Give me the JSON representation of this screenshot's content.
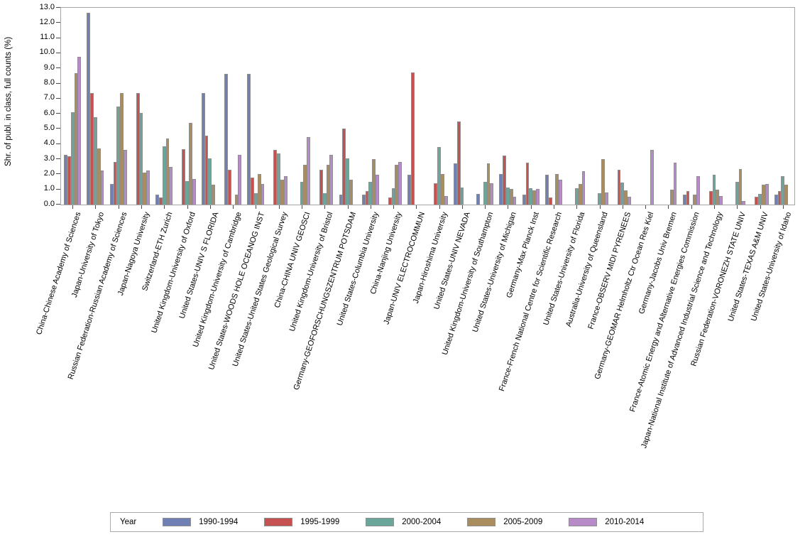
{
  "y_axis": {
    "title": "Shr. of publ. in class, full counts (%)",
    "tick_labels": [
      "0.0",
      "1.0",
      "2.0",
      "3.0",
      "4.0",
      "5.0",
      "6.0",
      "7.0",
      "8.0",
      "9.0",
      "10.0",
      "11.0",
      "12.0",
      "13.0"
    ],
    "min": 0,
    "max": 13,
    "step": 1
  },
  "legend": {
    "title": "Year",
    "position": "bottom"
  },
  "colors": {
    "frame": "#a6a6a6",
    "bar_outline": "#8e8e8e",
    "tick": "#4a4a4a",
    "background": "#ffffff"
  },
  "chart_data": {
    "type": "bar",
    "title": "",
    "xlabel": "",
    "ylabel": "Shr. of publ. in class, full counts (%)",
    "ylim": [
      0,
      13
    ],
    "grid": false,
    "legend_position": "bottom",
    "categories": [
      "China-Chinese Academy of Sciences",
      "Japan-University of Tokyo",
      "Russian Federation-Russian Academy of Sciences",
      "Japan-Nagoya University",
      "Switzerland-ETH Zurich",
      "United Kingdom-University of Oxford",
      "United States-UNIV S FLORIDA",
      "United Kingdom-University of Cambridge",
      "United States-WOODS HOLE OCEANOG INST",
      "United States-United States Geological Survey",
      "China-CHINA UNIV GEOSCI",
      "United Kingdom-University of Bristol",
      "Germany-GEOFORSCHUNGSZENTRUM POTSDAM",
      "United States-Columbia University",
      "China-Nanjing University",
      "Japan-UNIV ELECTROCOMMUN",
      "Japan-Hiroshima University",
      "United States-UNIV NEVADA",
      "United Kingdom-University of Southampton",
      "United States-University of Michigan",
      "Germany-Max Planck Inst",
      "France-French National Centre for Scientific Research",
      "United States-University of Florida",
      "Australia-University of Queensland",
      "France-OBSERV MIDI PYRENEES",
      "Germany-GEOMAR Helmholtz Ctr Ocean Res Kiel",
      "Germany-Jacobs Univ Bremen",
      "France-Atomic Energy and Alternative Energies Commission",
      "Japan-National Institute of Advanced Industrial Science and Technology",
      "Russian Federation-VORONEZH STATE UNIV",
      "United States-TEXAS A&M UNIV",
      "United States-University of Idaho"
    ],
    "series": [
      {
        "name": "1990-1994",
        "color": "#7180b4",
        "values": [
          3.3,
          12.65,
          1.35,
          0,
          0.65,
          0,
          7.35,
          8.65,
          8.65,
          0,
          0,
          0,
          0.65,
          0.65,
          0,
          1.95,
          0,
          2.7,
          0.7,
          2.0,
          0.65,
          1.95,
          0,
          0,
          0,
          0,
          0,
          0.65,
          0,
          0,
          0,
          0.65
        ]
      },
      {
        "name": "1995-1999",
        "color": "#c55251",
        "values": [
          3.2,
          7.35,
          2.8,
          7.35,
          0.45,
          3.65,
          4.55,
          2.3,
          1.8,
          3.6,
          0,
          2.3,
          5.0,
          0.9,
          0.45,
          8.75,
          1.4,
          5.5,
          0,
          3.25,
          2.75,
          0.45,
          0,
          0,
          2.3,
          0,
          0,
          0.9,
          0.9,
          0,
          0.5,
          0.9
        ]
      },
      {
        "name": "2000-2004",
        "color": "#6aa69a",
        "values": [
          6.1,
          5.75,
          6.5,
          6.05,
          3.85,
          1.55,
          3.05,
          0,
          0.75,
          3.4,
          1.5,
          0.75,
          3.05,
          1.5,
          1.1,
          0,
          3.8,
          1.15,
          1.5,
          1.15,
          1.1,
          0,
          1.1,
          0.75,
          1.45,
          0,
          0,
          0,
          1.95,
          1.5,
          0.7,
          1.9
        ]
      },
      {
        "name": "2005-2009",
        "color": "#a98d5e",
        "values": [
          8.7,
          3.7,
          7.35,
          2.1,
          4.35,
          5.4,
          1.3,
          0.65,
          2.0,
          1.65,
          2.65,
          2.65,
          1.65,
          3.0,
          2.65,
          0,
          2.0,
          0,
          2.7,
          1.05,
          0.95,
          2.0,
          1.35,
          3.0,
          0.95,
          0,
          1.0,
          0.65,
          1.0,
          2.35,
          1.3,
          1.3
        ]
      },
      {
        "name": "2010-2014",
        "color": "#b78bc7",
        "values": [
          9.75,
          2.25,
          3.6,
          2.25,
          2.5,
          1.7,
          0,
          3.3,
          1.35,
          1.9,
          4.45,
          3.3,
          0,
          1.95,
          2.8,
          0,
          0.55,
          0,
          1.4,
          0.5,
          1.05,
          1.65,
          2.2,
          0.8,
          0.5,
          3.6,
          2.75,
          1.9,
          0.55,
          0.25,
          1.35,
          0
        ]
      }
    ]
  }
}
